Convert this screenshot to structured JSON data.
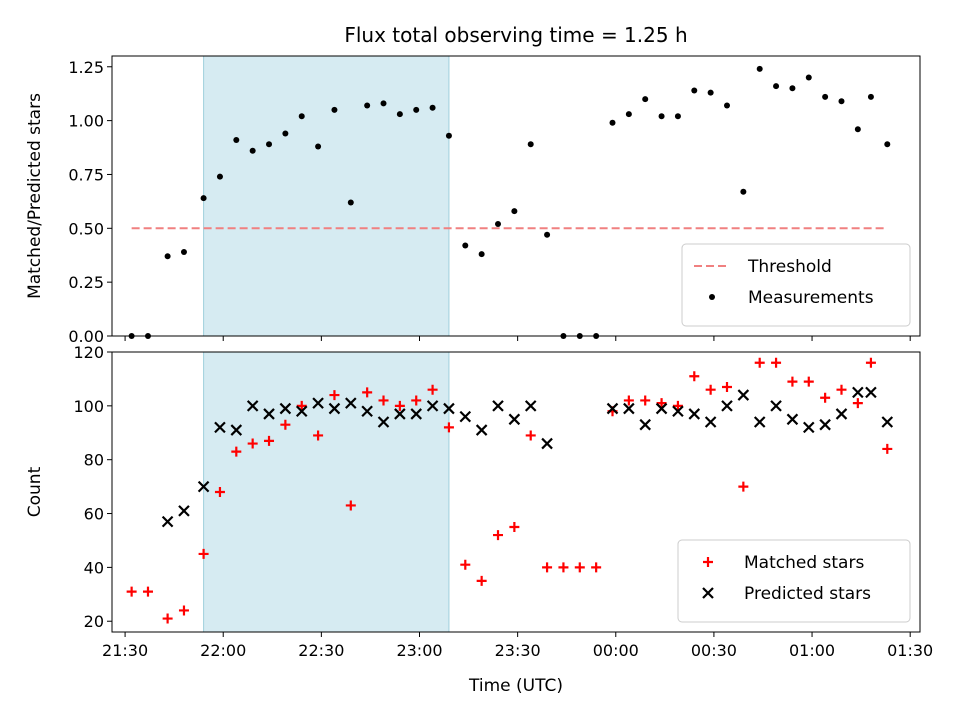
{
  "title": "Flux total observing time = 1.25 h",
  "x_tick_labels": [
    "21:30",
    "22:00",
    "22:30",
    "23:00",
    "23:30",
    "00:00",
    "00:30",
    "01:00",
    "01:30"
  ],
  "xlabel": "Time (UTC)",
  "chart_data": [
    {
      "type": "scatter",
      "ylabel": "Matched/Predicted stars",
      "ylim": [
        0,
        1.3
      ],
      "yticks": [
        0,
        0.25,
        0.5,
        0.75,
        1.0,
        1.25
      ],
      "ytick_labels": [
        "0.00",
        "0.25",
        "0.50",
        "0.75",
        "1.00",
        "1.25"
      ],
      "legend_position": "lower-right",
      "shaded_interval": [
        "21:54",
        "23:09"
      ],
      "threshold": {
        "name": "Threshold",
        "value": 0.5,
        "x_range": [
          "21:32",
          "01:23"
        ],
        "color": "#f08080"
      },
      "series": [
        {
          "name": "Measurements",
          "color": "#000000",
          "x": [
            "21:32",
            "21:37",
            "21:43",
            "21:48",
            "21:54",
            "21:59",
            "22:04",
            "22:09",
            "22:14",
            "22:19",
            "22:24",
            "22:29",
            "22:34",
            "22:39",
            "22:44",
            "22:49",
            "22:54",
            "22:59",
            "23:04",
            "23:09",
            "23:14",
            "23:19",
            "23:24",
            "23:29",
            "23:34",
            "23:39",
            "23:44",
            "23:49",
            "23:54",
            "23:59",
            "00:04",
            "00:09",
            "00:14",
            "00:19",
            "00:24",
            "00:29",
            "00:34",
            "00:39",
            "00:44",
            "00:49",
            "00:54",
            "00:59",
            "01:04",
            "01:09",
            "01:14",
            "01:18",
            "01:23"
          ],
          "y": [
            0.0,
            0.0,
            0.37,
            0.39,
            0.64,
            0.74,
            0.91,
            0.86,
            0.89,
            0.94,
            1.02,
            0.88,
            1.05,
            0.62,
            1.07,
            1.08,
            1.03,
            1.05,
            1.06,
            0.93,
            0.42,
            0.38,
            0.52,
            0.58,
            0.89,
            0.47,
            0.0,
            0.0,
            0.0,
            0.99,
            1.03,
            1.1,
            1.02,
            1.02,
            1.14,
            1.13,
            1.07,
            0.67,
            1.24,
            1.16,
            1.15,
            1.2,
            1.11,
            1.09,
            0.96,
            1.11,
            0.89
          ]
        }
      ]
    },
    {
      "type": "scatter",
      "ylabel": "Count",
      "ylim": [
        16,
        120
      ],
      "yticks": [
        20,
        40,
        60,
        80,
        100,
        120
      ],
      "ytick_labels": [
        "20",
        "40",
        "60",
        "80",
        "100",
        "120"
      ],
      "legend_position": "lower-right",
      "shaded_interval": [
        "21:54",
        "23:09"
      ],
      "series": [
        {
          "name": "Matched stars",
          "marker": "plus",
          "color": "#ff0000",
          "x": [
            "21:32",
            "21:37",
            "21:43",
            "21:48",
            "21:54",
            "21:59",
            "22:04",
            "22:09",
            "22:14",
            "22:19",
            "22:24",
            "22:29",
            "22:34",
            "22:39",
            "22:44",
            "22:49",
            "22:54",
            "22:59",
            "23:04",
            "23:09",
            "23:14",
            "23:19",
            "23:24",
            "23:29",
            "23:34",
            "23:39",
            "23:44",
            "23:49",
            "23:54",
            "23:59",
            "00:04",
            "00:09",
            "00:14",
            "00:19",
            "00:24",
            "00:29",
            "00:34",
            "00:39",
            "00:44",
            "00:49",
            "00:54",
            "00:59",
            "01:04",
            "01:09",
            "01:14",
            "01:18",
            "01:23"
          ],
          "y": [
            31,
            31,
            21,
            24,
            45,
            68,
            83,
            86,
            87,
            93,
            100,
            89,
            104,
            63,
            105,
            102,
            100,
            102,
            106,
            92,
            41,
            35,
            52,
            55,
            89,
            40,
            40,
            40,
            40,
            98,
            102,
            102,
            101,
            100,
            111,
            106,
            107,
            70,
            116,
            116,
            109,
            109,
            103,
            106,
            101,
            116,
            84
          ]
        },
        {
          "name": "Predicted stars",
          "marker": "x",
          "color": "#000000",
          "x": [
            "21:43",
            "21:48",
            "21:54",
            "21:59",
            "22:04",
            "22:09",
            "22:14",
            "22:19",
            "22:24",
            "22:29",
            "22:34",
            "22:39",
            "22:44",
            "22:49",
            "22:54",
            "22:59",
            "23:04",
            "23:09",
            "23:14",
            "23:19",
            "23:24",
            "23:29",
            "23:34",
            "23:39",
            "23:59",
            "00:04",
            "00:09",
            "00:14",
            "00:19",
            "00:24",
            "00:29",
            "00:34",
            "00:39",
            "00:44",
            "00:49",
            "00:54",
            "00:59",
            "01:04",
            "01:09",
            "01:14",
            "01:18",
            "01:23"
          ],
          "y": [
            57,
            61,
            70,
            92,
            91,
            100,
            97,
            99,
            98,
            101,
            99,
            101,
            98,
            94,
            97,
            97,
            100,
            99,
            96,
            91,
            100,
            95,
            100,
            86,
            99,
            99,
            93,
            99,
            98,
            97,
            94,
            100,
            104,
            94,
            100,
            95,
            92,
            93,
            97,
            105,
            105,
            94
          ]
        }
      ]
    }
  ]
}
